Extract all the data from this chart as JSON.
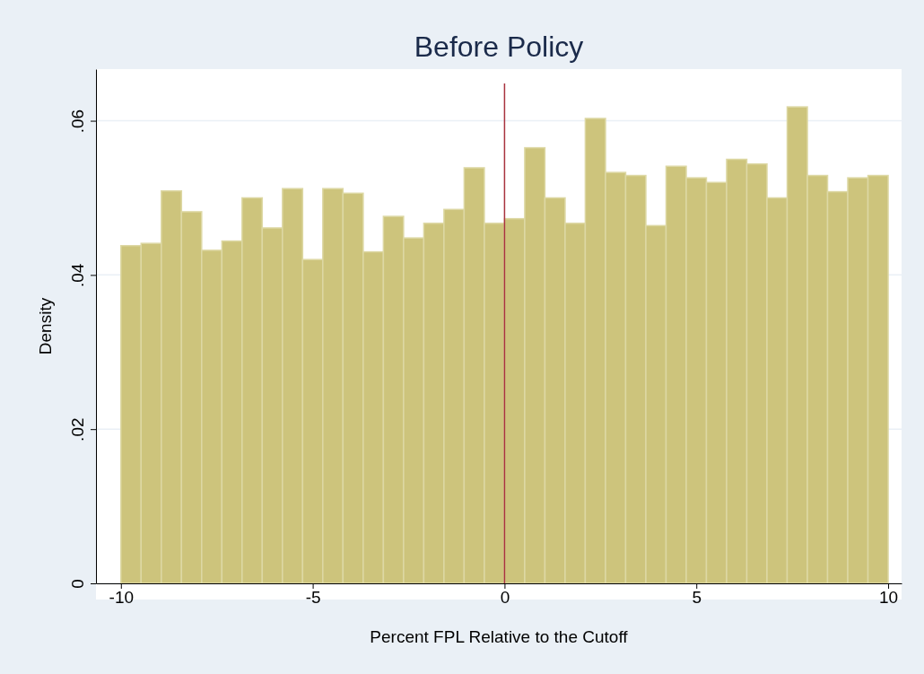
{
  "chart_data": {
    "type": "histogram",
    "title": "Before Policy",
    "xlabel": "Percent FPL Relative to the Cutoff",
    "ylabel": "Density",
    "bins": [
      -10,
      -9.474,
      -8.947,
      -8.421,
      -7.895,
      -7.368,
      -6.842,
      -6.316,
      -5.789,
      -5.263,
      -4.737,
      -4.211,
      -3.684,
      -3.158,
      -2.632,
      -2.105,
      -1.579,
      -1.053,
      -0.526,
      0,
      0.526,
      1.053,
      1.579,
      2.105,
      2.632,
      3.158,
      3.684,
      4.211,
      4.737,
      5.263,
      5.789,
      6.316,
      6.842,
      7.368,
      7.895,
      8.421,
      8.947,
      9.474,
      10
    ],
    "values": [
      0.0438,
      0.0441,
      0.0509,
      0.0482,
      0.0432,
      0.0444,
      0.05,
      0.0461,
      0.0512,
      0.042,
      0.0512,
      0.0506,
      0.043,
      0.0476,
      0.0448,
      0.0467,
      0.0485,
      0.0539,
      0.0467,
      0.0473,
      0.0565,
      0.05,
      0.0467,
      0.0603,
      0.0533,
      0.0529,
      0.0464,
      0.0541,
      0.0526,
      0.052,
      0.055,
      0.0544,
      0.05,
      0.0618,
      0.0529,
      0.0508,
      0.0526,
      0.0529
    ],
    "color": "#cdc47c",
    "xlim": [
      -10.65,
      10.35
    ],
    "ylim": [
      0,
      0.0667
    ],
    "xticks": [
      -10,
      -5,
      0,
      5,
      10
    ],
    "yticks": [
      0,
      {
        "value": 0.02,
        "label": ".02"
      },
      {
        "value": 0.04,
        "label": ".04"
      },
      {
        "value": 0.06,
        "label": ".06"
      }
    ],
    "grid": "y",
    "ref_lines": [
      {
        "axis": "x",
        "value": 0,
        "color": "#a8323e"
      }
    ]
  }
}
